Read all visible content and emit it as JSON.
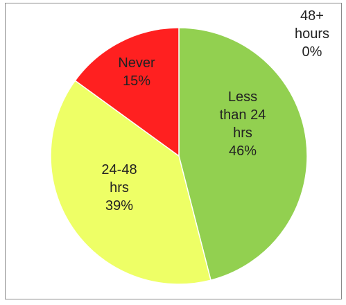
{
  "chart_data": {
    "type": "pie",
    "categories": [
      "Less than 24 hrs",
      "24-48 hrs",
      "Never",
      "48+ hours"
    ],
    "values": [
      46,
      39,
      15,
      0
    ],
    "unit": "%",
    "colors": [
      "#92d050",
      "#eeff66",
      "#ff2020",
      "#ffffff"
    ],
    "labels": [
      {
        "lines": [
          "Less",
          "than 24",
          "hrs",
          "46%"
        ]
      },
      {
        "lines": [
          "24-48",
          "hrs",
          "39%"
        ]
      },
      {
        "lines": [
          "Never",
          "15%"
        ]
      },
      {
        "lines": [
          "48+",
          "hours",
          "0%"
        ]
      }
    ],
    "start_angle_deg": 0,
    "direction": "clockwise",
    "legend": "none",
    "title": ""
  }
}
